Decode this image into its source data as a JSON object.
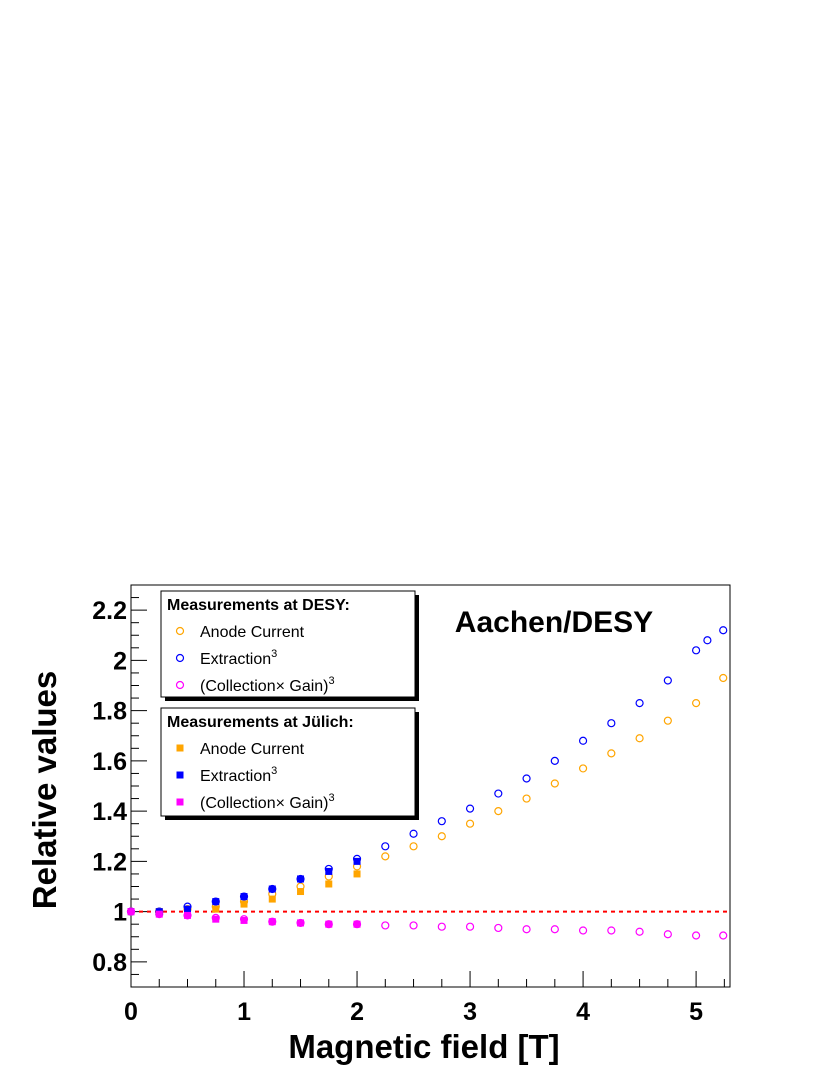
{
  "chart_data": {
    "type": "scatter",
    "title": "",
    "annotation": "Aachen/DESY",
    "xlabel": "Magnetic field [T]",
    "ylabel": "Relative values",
    "xlim": [
      0,
      5.3
    ],
    "ylim": [
      0.7,
      2.3
    ],
    "x_ticks": [
      "0",
      "1",
      "2",
      "3",
      "4",
      "5"
    ],
    "y_ticks": [
      "0.8",
      "1",
      "1.2",
      "1.4",
      "1.6",
      "1.8",
      "2",
      "2.2"
    ],
    "reference_line": {
      "y": 1.0,
      "color": "#ff0000",
      "style": "dashed"
    },
    "grid": false,
    "legend_groups": [
      {
        "header": "Measurements at DESY:",
        "placement": "top-left",
        "entries": [
          {
            "label": "Anode Current",
            "sup": "",
            "color": "#ffa500",
            "marker": "open-circle"
          },
          {
            "label": "Extraction",
            "sup": "3",
            "color": "#0000ff",
            "marker": "open-circle"
          },
          {
            "label": "(Collection× Gain)",
            "sup": "3",
            "color": "#ff00ff",
            "marker": "open-circle"
          }
        ]
      },
      {
        "header": "Measurements at Jülich:",
        "placement": "top-left",
        "entries": [
          {
            "label": "Anode Current",
            "sup": "",
            "color": "#ffa500",
            "marker": "filled-square"
          },
          {
            "label": "Extraction",
            "sup": "3",
            "color": "#0000ff",
            "marker": "filled-square"
          },
          {
            "label": "(Collection× Gain)",
            "sup": "3",
            "color": "#ff00ff",
            "marker": "filled-square"
          }
        ]
      }
    ],
    "series": [
      {
        "name": "DESY Anode Current",
        "color": "#ffa500",
        "marker": "open-circle",
        "points": [
          [
            0,
            1.0
          ],
          [
            0.25,
            1.0
          ],
          [
            0.5,
            1.01
          ],
          [
            0.75,
            1.02
          ],
          [
            1.0,
            1.04
          ],
          [
            1.25,
            1.07
          ],
          [
            1.5,
            1.1
          ],
          [
            1.75,
            1.14
          ],
          [
            2.0,
            1.18
          ],
          [
            2.25,
            1.22
          ],
          [
            2.5,
            1.26
          ],
          [
            2.75,
            1.3
          ],
          [
            3.0,
            1.35
          ],
          [
            3.25,
            1.4
          ],
          [
            3.5,
            1.45
          ],
          [
            3.75,
            1.51
          ],
          [
            4.0,
            1.57
          ],
          [
            4.25,
            1.63
          ],
          [
            4.5,
            1.69
          ],
          [
            4.75,
            1.76
          ],
          [
            5.0,
            1.83
          ],
          [
            5.24,
            1.93
          ]
        ]
      },
      {
        "name": "DESY Extraction^3",
        "color": "#0000ff",
        "marker": "open-circle",
        "points": [
          [
            0,
            1.0
          ],
          [
            0.25,
            1.0
          ],
          [
            0.5,
            1.02
          ],
          [
            0.75,
            1.04
          ],
          [
            1.0,
            1.06
          ],
          [
            1.25,
            1.09
          ],
          [
            1.5,
            1.13
          ],
          [
            1.75,
            1.17
          ],
          [
            2.0,
            1.21
          ],
          [
            2.25,
            1.26
          ],
          [
            2.5,
            1.31
          ],
          [
            2.75,
            1.36
          ],
          [
            3.0,
            1.41
          ],
          [
            3.25,
            1.47
          ],
          [
            3.5,
            1.53
          ],
          [
            3.75,
            1.6
          ],
          [
            4.0,
            1.68
          ],
          [
            4.25,
            1.75
          ],
          [
            4.5,
            1.83
          ],
          [
            4.75,
            1.92
          ],
          [
            5.0,
            2.04
          ],
          [
            5.1,
            2.08
          ],
          [
            5.24,
            2.12
          ]
        ]
      },
      {
        "name": "DESY (Collection x Gain)^3",
        "color": "#ff00ff",
        "marker": "open-circle",
        "points": [
          [
            0,
            1.0
          ],
          [
            0.25,
            0.99
          ],
          [
            0.5,
            0.985
          ],
          [
            0.75,
            0.975
          ],
          [
            1.0,
            0.97
          ],
          [
            1.25,
            0.96
          ],
          [
            1.5,
            0.955
          ],
          [
            1.75,
            0.95
          ],
          [
            2.0,
            0.95
          ],
          [
            2.25,
            0.945
          ],
          [
            2.5,
            0.945
          ],
          [
            2.75,
            0.94
          ],
          [
            3.0,
            0.94
          ],
          [
            3.25,
            0.935
          ],
          [
            3.5,
            0.93
          ],
          [
            3.75,
            0.93
          ],
          [
            4.0,
            0.925
          ],
          [
            4.25,
            0.925
          ],
          [
            4.5,
            0.92
          ],
          [
            4.75,
            0.91
          ],
          [
            5.0,
            0.905
          ],
          [
            5.24,
            0.905
          ]
        ]
      },
      {
        "name": "Jülich Anode Current",
        "color": "#ffa500",
        "marker": "filled-square",
        "points": [
          [
            0,
            1.0
          ],
          [
            0.25,
            1.0
          ],
          [
            0.5,
            1.005
          ],
          [
            0.75,
            1.01
          ],
          [
            1.0,
            1.03
          ],
          [
            1.25,
            1.05
          ],
          [
            1.5,
            1.08
          ],
          [
            1.75,
            1.11
          ],
          [
            2.0,
            1.15
          ]
        ]
      },
      {
        "name": "Jülich Extraction^3",
        "color": "#0000ff",
        "marker": "filled-square",
        "points": [
          [
            0,
            1.0
          ],
          [
            0.25,
            1.0
          ],
          [
            0.5,
            1.01
          ],
          [
            0.75,
            1.04
          ],
          [
            1.0,
            1.06
          ],
          [
            1.25,
            1.09
          ],
          [
            1.5,
            1.13
          ],
          [
            1.75,
            1.16
          ],
          [
            2.0,
            1.2
          ]
        ]
      },
      {
        "name": "Jülich (Collection x Gain)^3",
        "color": "#ff00ff",
        "marker": "filled-square",
        "points": [
          [
            0,
            1.0
          ],
          [
            0.25,
            0.99
          ],
          [
            0.5,
            0.985
          ],
          [
            0.75,
            0.97
          ],
          [
            1.0,
            0.965
          ],
          [
            1.25,
            0.96
          ],
          [
            1.5,
            0.955
          ],
          [
            1.75,
            0.95
          ],
          [
            2.0,
            0.95
          ]
        ]
      }
    ]
  }
}
